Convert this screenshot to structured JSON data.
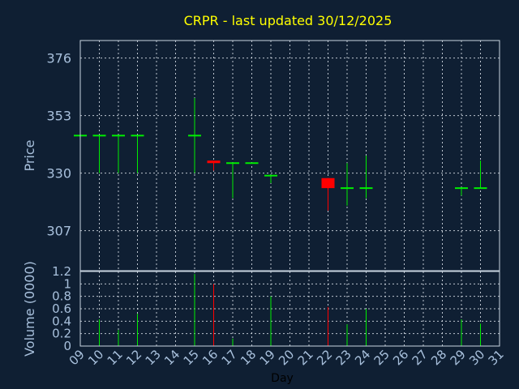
{
  "chart_data": {
    "type": "candlestick",
    "title": "CRPR - last updated 30/12/2025",
    "price_axis": {
      "label": "Price",
      "ticks": [
        307,
        330,
        353,
        376
      ],
      "range": [
        291,
        383
      ]
    },
    "volume_axis": {
      "label": "Volume (0000)",
      "ticks": [
        "0",
        "0.2",
        "0.4",
        "0.6",
        "0.8",
        "1",
        "1.2"
      ],
      "range": [
        0,
        1.2
      ]
    },
    "x_axis": {
      "label": "Day",
      "ticks": [
        "09",
        "10",
        "11",
        "12",
        "13",
        "14",
        "15",
        "16",
        "17",
        "18",
        "19",
        "20",
        "21",
        "22",
        "23",
        "24",
        "25",
        "26",
        "27",
        "28",
        "29",
        "30",
        "31"
      ]
    },
    "grid": true,
    "colors": {
      "up": "#00ee00",
      "down": "#ff0000"
    },
    "candles": [
      {
        "day": "09",
        "open": 345,
        "high": 345,
        "low": 345,
        "close": 345,
        "volume": null
      },
      {
        "day": "10",
        "open": 345,
        "high": 345,
        "low": 330,
        "close": 345,
        "volume": 0.43
      },
      {
        "day": "11",
        "open": 345,
        "high": 345,
        "low": 330,
        "close": 345,
        "volume": 0.26
      },
      {
        "day": "12",
        "open": 345,
        "high": 345,
        "low": 330,
        "close": 345,
        "volume": 0.52
      },
      {
        "day": "15",
        "open": 345,
        "high": 360,
        "low": 330,
        "close": 345,
        "volume": 1.16
      },
      {
        "day": "16",
        "open": 335,
        "high": 335,
        "low": 331,
        "close": 334,
        "volume": 1.0
      },
      {
        "day": "17",
        "open": 334,
        "high": 334,
        "low": 320,
        "close": 334,
        "volume": 0.12
      },
      {
        "day": "18",
        "open": 334,
        "high": 334,
        "low": 334,
        "close": 334,
        "volume": null
      },
      {
        "day": "19",
        "open": 329,
        "high": 329,
        "low": 326,
        "close": 329,
        "volume": 0.8
      },
      {
        "day": "22",
        "open": 328,
        "high": 328,
        "low": 315,
        "close": 324,
        "volume": 0.63
      },
      {
        "day": "23",
        "open": 324,
        "high": 334,
        "low": 317,
        "close": 324,
        "volume": 0.35
      },
      {
        "day": "24",
        "open": 324,
        "high": 337,
        "low": 320,
        "close": 324,
        "volume": 0.6
      },
      {
        "day": "29",
        "open": 324,
        "high": 324,
        "low": 321,
        "close": 324,
        "volume": 0.43
      },
      {
        "day": "30",
        "open": 324,
        "high": 335,
        "low": 324,
        "close": 324,
        "volume": 0.36
      }
    ]
  }
}
